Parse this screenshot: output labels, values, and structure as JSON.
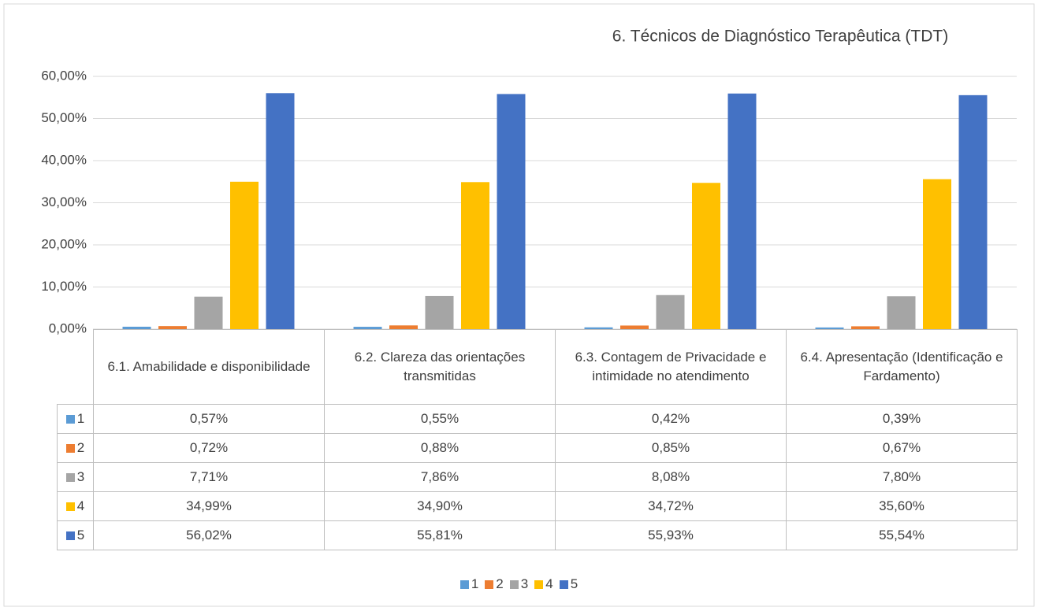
{
  "chart_data": {
    "type": "bar",
    "title": "6. Técnicos de Diagnóstico Terapêutica (TDT)",
    "categories": [
      "6.1. Amabilidade e disponibilidade",
      "6.2. Clareza das orientações transmitidas",
      "6.3. Contagem de Privacidade e intimidade no atendimento",
      "6.4. Apresentação (Identificação e Fardamento)"
    ],
    "series": [
      {
        "name": "1",
        "color": "#5b9bd5",
        "values": [
          0.57,
          0.55,
          0.42,
          0.39
        ],
        "value_labels": [
          "0,57%",
          "0,55%",
          "0,42%",
          "0,39%"
        ]
      },
      {
        "name": "2",
        "color": "#ed7d31",
        "values": [
          0.72,
          0.88,
          0.85,
          0.67
        ],
        "value_labels": [
          "0,72%",
          "0,88%",
          "0,85%",
          "0,67%"
        ]
      },
      {
        "name": "3",
        "color": "#a5a5a5",
        "values": [
          7.71,
          7.86,
          8.08,
          7.8
        ],
        "value_labels": [
          "7,71%",
          "7,86%",
          "8,08%",
          "7,80%"
        ]
      },
      {
        "name": "4",
        "color": "#ffc000",
        "values": [
          34.99,
          34.9,
          34.72,
          35.6
        ],
        "value_labels": [
          "34,99%",
          "34,90%",
          "34,72%",
          "35,60%"
        ]
      },
      {
        "name": "5",
        "color": "#4472c4",
        "values": [
          56.02,
          55.81,
          55.93,
          55.54
        ],
        "value_labels": [
          "56,02%",
          "55,81%",
          "55,93%",
          "55,54%"
        ]
      }
    ],
    "ylim": [
      0,
      60
    ],
    "yticks": [
      {
        "value": 0,
        "label": "0,00%"
      },
      {
        "value": 10,
        "label": "10,00%"
      },
      {
        "value": 20,
        "label": "20,00%"
      },
      {
        "value": 30,
        "label": "30,00%"
      },
      {
        "value": 40,
        "label": "40,00%"
      },
      {
        "value": 50,
        "label": "50,00%"
      },
      {
        "value": 60,
        "label": "60,00%"
      }
    ],
    "grid": true
  }
}
